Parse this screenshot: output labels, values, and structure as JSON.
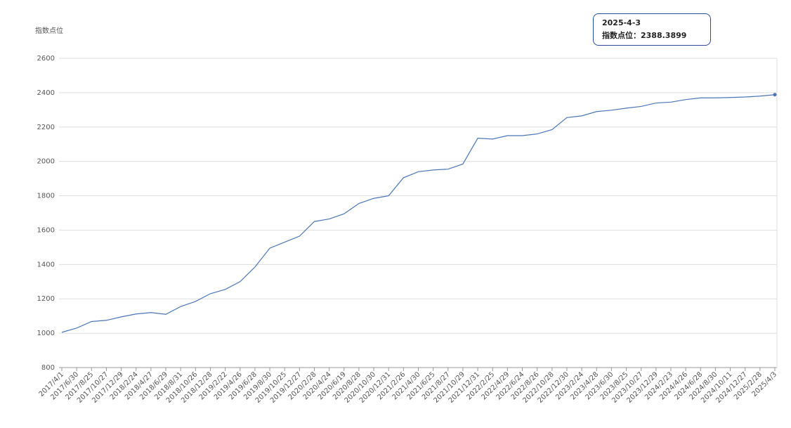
{
  "chart_data": {
    "type": "line",
    "y_label": "指数点位",
    "categories": [
      "2017/4/1",
      "2017/6/30",
      "2017/8/25",
      "2017/10/27",
      "2017/12/29",
      "2018/2/24",
      "2018/4/27",
      "2018/6/29",
      "2018/8/31",
      "2018/10/26",
      "2018/12/28",
      "2019/2/22",
      "2019/4/26",
      "2019/6/28",
      "2019/8/30",
      "2019/10/25",
      "2019/12/27",
      "2020/2/28",
      "2020/4/24",
      "2020/6/19",
      "2020/8/28",
      "2020/10/30",
      "2020/12/31",
      "2021/2/26",
      "2021/4/30",
      "2021/6/25",
      "2021/8/27",
      "2021/10/29",
      "2021/12/31",
      "2022/2/25",
      "2022/4/29",
      "2022/6/24",
      "2022/8/26",
      "2022/10/28",
      "2022/12/30",
      "2023/2/24",
      "2023/4/28",
      "2023/6/30",
      "2023/8/25",
      "2023/10/27",
      "2023/12/29",
      "2024/2/23",
      "2024/4/26",
      "2024/6/28",
      "2024/8/30",
      "2024/10/11",
      "2024/12/27",
      "2025/2/28",
      "2025/4/3"
    ],
    "series": [
      {
        "name": "指数点位",
        "color": "#4a76b8",
        "values": [
          1005,
          1030,
          1068,
          1075,
          1095,
          1112,
          1120,
          1110,
          1155,
          1185,
          1230,
          1255,
          1300,
          1385,
          1495,
          1530,
          1565,
          1650,
          1665,
          1695,
          1755,
          1785,
          1800,
          1905,
          1940,
          1950,
          1955,
          1985,
          2135,
          2130,
          2150,
          2150,
          2160,
          2185,
          2255,
          2265,
          2290,
          2298,
          2310,
          2320,
          2340,
          2345,
          2360,
          2370,
          2370,
          2372,
          2375,
          2380,
          2388.3899
        ]
      }
    ],
    "ylim": [
      800,
      2600
    ],
    "yticks": [
      800,
      1000,
      1200,
      1400,
      1600,
      1800,
      2000,
      2200,
      2400,
      2600
    ],
    "grid": true,
    "tooltip": {
      "date": "2025-4-3",
      "text": "指数点位：2388.3899"
    }
  }
}
